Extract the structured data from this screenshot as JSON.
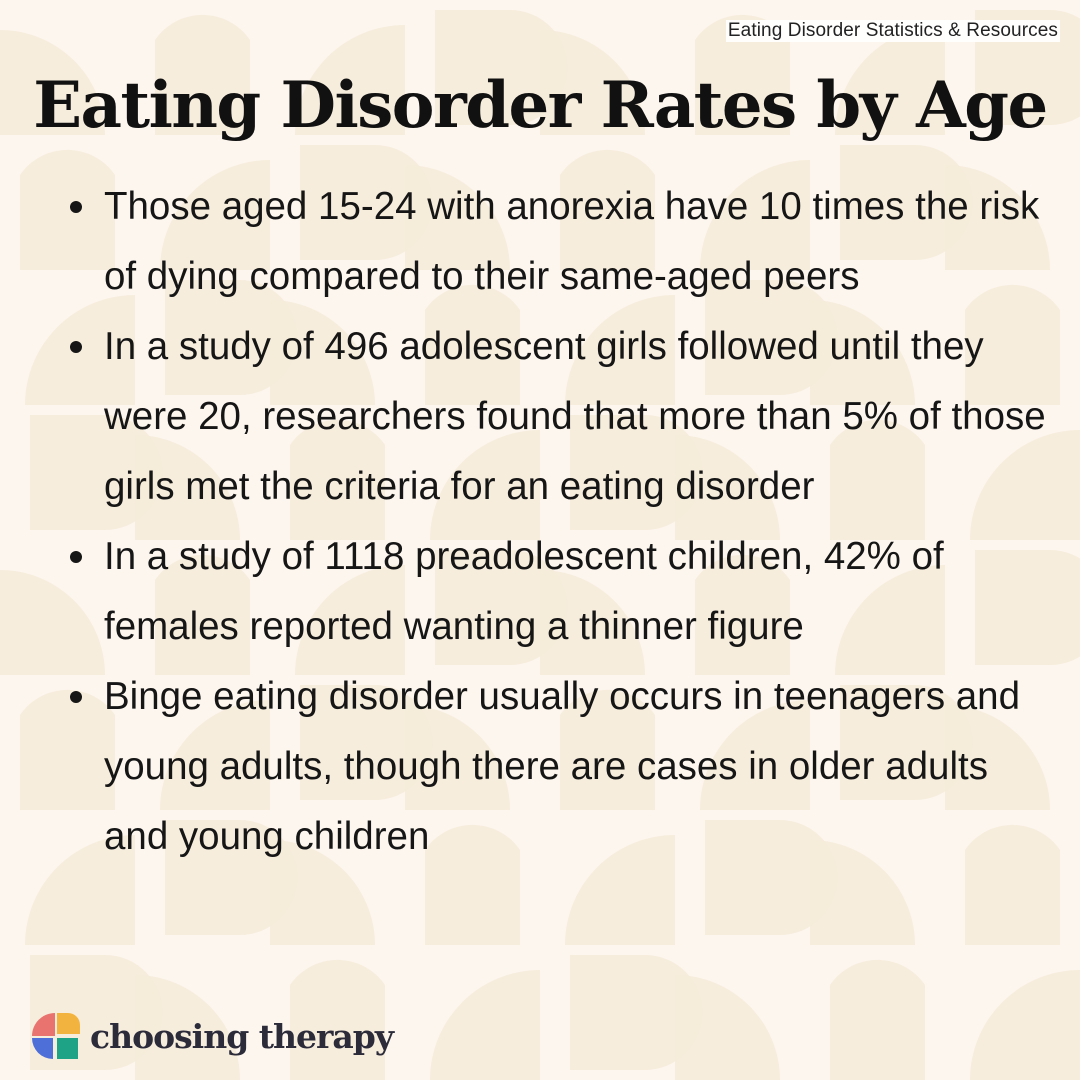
{
  "header": {
    "top_label": "Eating Disorder Statistics & Resources",
    "title": "Eating Disorder Rates by Age"
  },
  "bullets": [
    "Those aged 15-24 with anorexia have 10 times the risk of dying compared to their same-aged peers",
    "In a study of 496 adolescent girls followed until they were 20, researchers found that more than 5% of those girls met the criteria for an eating disorder",
    "In a study of 1118 preadolescent children, 42% of females reported wanting a thinner figure",
    "Binge eating disorder usually occurs in teenagers and young adults, though there are cases in older adults and young children"
  ],
  "brand": {
    "name": "choosing therapy",
    "logo_icon": "choosing-therapy-logo-icon",
    "logo_colors": [
      "#e8736f",
      "#f3b43f",
      "#4f6fd8",
      "#1fa387"
    ]
  },
  "colors": {
    "background": "#fdf6ee",
    "pattern_shape": "#f6ebd9",
    "text": "#161616"
  }
}
